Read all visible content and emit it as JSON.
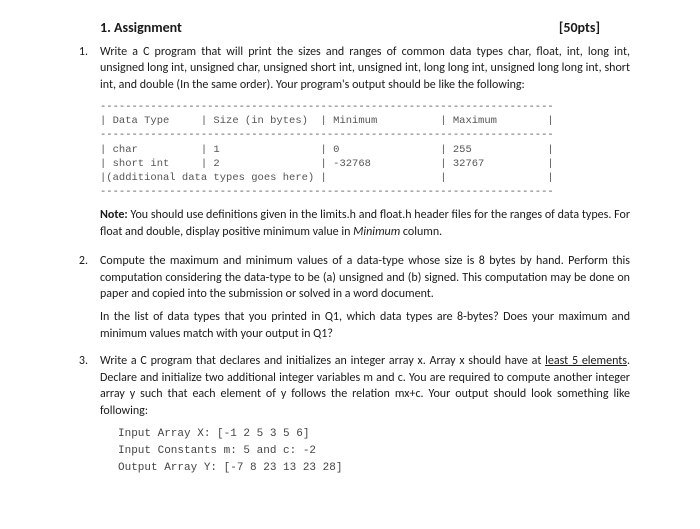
{
  "header": {
    "title": "1. Assignment",
    "points": "[50pts]"
  },
  "q1": {
    "num": "1.",
    "text": "Write a C program that will print the sizes and ranges of common data types char, float, int, long int, unsigned long int, unsigned char, unsigned short int, unsigned int, long long int, unsigned long long int, short int, and double (In the same order). Your program's output should be like the following:",
    "table": "------------------------------------------------------------------------\n| Data Type     | Size (in bytes)  | Minimum          | Maximum        |\n------------------------------------------------------------------------\n| char          | 1                | 0                | 255            |\n| short int     | 2                | -32768           | 32767          |\n|(additional data types goes here) |                  |                |\n------------------------------------------------------------------------",
    "note_label": "Note:",
    "note_text": " You should use definitions given in the limits.h and float.h header files for the ranges of data types. For float and double, display positive minimum value in ",
    "note_em": "Minimum",
    "note_tail": " column."
  },
  "q2": {
    "num": "2.",
    "p1": "Compute  the maximum and minimum values of a data-type whose size is 8 bytes by hand. Perform this computation considering the data-type to be (a) unsigned and (b) signed. This computation may be done on paper and copied into the submission or solved in a word document.",
    "p2": "In the list of data types that you printed in Q1, which data types are 8-bytes? Does your maximum and minimum values match with your output in Q1?"
  },
  "q3": {
    "num": "3.",
    "t1": "Write a C program that declares and initializes an integer array x. Array x should have at ",
    "under": "least 5 elements",
    "t2": ". Declare and initialize two additional integer variables m and c. You are required to compute another integer array y such that each element of y follows the relation mx+c. Your output should look something like following:",
    "out1": "Input Array X: [-1 2 5 3 5 6]",
    "out2": "Input Constants m: 5 and c: -2",
    "out3": "Output Array Y: [-7 8 23 13 23 28]"
  }
}
